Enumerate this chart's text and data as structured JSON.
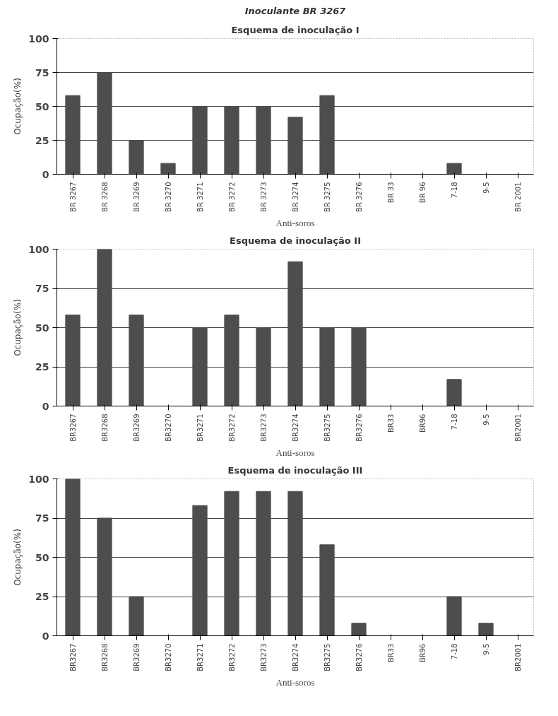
{
  "chart_data": [
    {
      "type": "bar",
      "title": "Inoculante BR 3267",
      "subtitle": "Esquema de inoculação I",
      "xlabel": "Anti-soros",
      "ylabel": "Ocupação(%)",
      "categories": [
        "BR 3267",
        "BR 3268",
        "BR 3269",
        "BR 3270",
        "BR 3271",
        "BR 3272",
        "BR 3273",
        "BR 3274",
        "BR 3275",
        "BR 3276",
        "BR 33",
        "BR 96",
        "7-18",
        "9-5",
        "BR 2001"
      ],
      "values": [
        58,
        75,
        25,
        8,
        50,
        50,
        50,
        42,
        58,
        0,
        0,
        0,
        8,
        0,
        0
      ],
      "color": "#4d4d4d",
      "ylim": [
        0,
        100
      ],
      "yticks": [
        0,
        25,
        50,
        75,
        100
      ],
      "grid": "y",
      "legend": false
    },
    {
      "type": "bar",
      "title": "Esquema de inoculação II",
      "xlabel": "Anti-soros",
      "ylabel": "Ocupação(%)",
      "categories": [
        "BR3267",
        "BR3268",
        "BR3269",
        "BR3270",
        "BR3271",
        "BR3272",
        "BR3273",
        "BR3274",
        "BR3275",
        "BR3276",
        "BR33",
        "BR96",
        "7-18",
        "9-5",
        "BR2001"
      ],
      "values": [
        58,
        100,
        58,
        0,
        50,
        58,
        50,
        92,
        50,
        50,
        0,
        0,
        17,
        0,
        0
      ],
      "color": "#4d4d4d",
      "ylim": [
        0,
        100
      ],
      "yticks": [
        0,
        25,
        50,
        75,
        100
      ],
      "grid": "y",
      "legend": false
    },
    {
      "type": "bar",
      "title": "Esquema de inoculação III",
      "xlabel": "Anti-soros",
      "ylabel": "Ocupação(%)",
      "categories": [
        "BR3267",
        "BR3268",
        "BR3269",
        "BR3270",
        "BR3271",
        "BR3272",
        "BR3273",
        "BR3274",
        "BR3275",
        "BR3276",
        "BR33",
        "BR96",
        "7-18",
        "9-5",
        "BR2001"
      ],
      "values": [
        100,
        75,
        25,
        0,
        83,
        92,
        92,
        92,
        58,
        8,
        0,
        0,
        25,
        8,
        0
      ],
      "color": "#4d4d4d",
      "ylim": [
        0,
        100
      ],
      "yticks": [
        0,
        25,
        50,
        75,
        100
      ],
      "grid": "y",
      "legend": false
    }
  ]
}
